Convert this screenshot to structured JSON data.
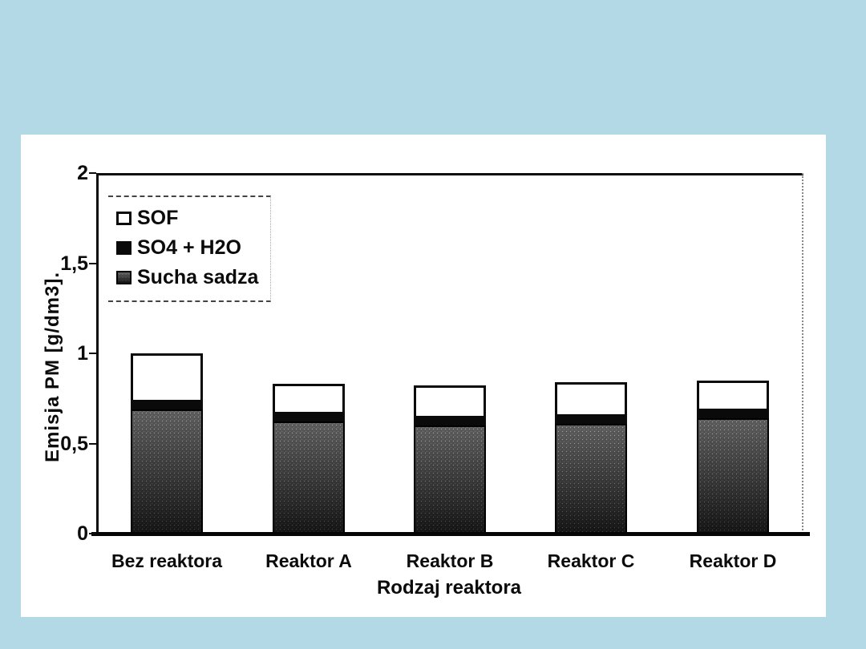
{
  "slide": {
    "background_color": "#b2d9e5",
    "panel_color": "#ffffff"
  },
  "chart_data": {
    "type": "bar",
    "stacked": true,
    "title": "",
    "xlabel": "Rodzaj reaktora",
    "ylabel": "Emisja PM [g/dm3].",
    "categories": [
      "Bez reaktora",
      "Reaktor A",
      "Reaktor B",
      "Reaktor C",
      "Reaktor D"
    ],
    "series": [
      {
        "name": "Sucha sadza",
        "style": "dither",
        "values": [
          0.69,
          0.62,
          0.6,
          0.61,
          0.64
        ]
      },
      {
        "name": "SO4 + H2O",
        "style": "black",
        "values": [
          0.04,
          0.04,
          0.04,
          0.04,
          0.04
        ]
      },
      {
        "name": "SOF",
        "style": "white",
        "values": [
          0.27,
          0.17,
          0.18,
          0.19,
          0.17
        ]
      }
    ],
    "totals": [
      1.0,
      0.83,
      0.82,
      0.84,
      0.85
    ],
    "ylim": [
      0,
      2
    ],
    "ytick_values": [
      0,
      0.5,
      1,
      1.5,
      2
    ],
    "ytick_labels": [
      "0",
      "0,5",
      "1",
      "1,5",
      "2"
    ],
    "legend": {
      "position": "top-left",
      "entries": [
        "SOF",
        "SO4 + H2O",
        "Sucha sadza"
      ]
    },
    "grid": false
  }
}
